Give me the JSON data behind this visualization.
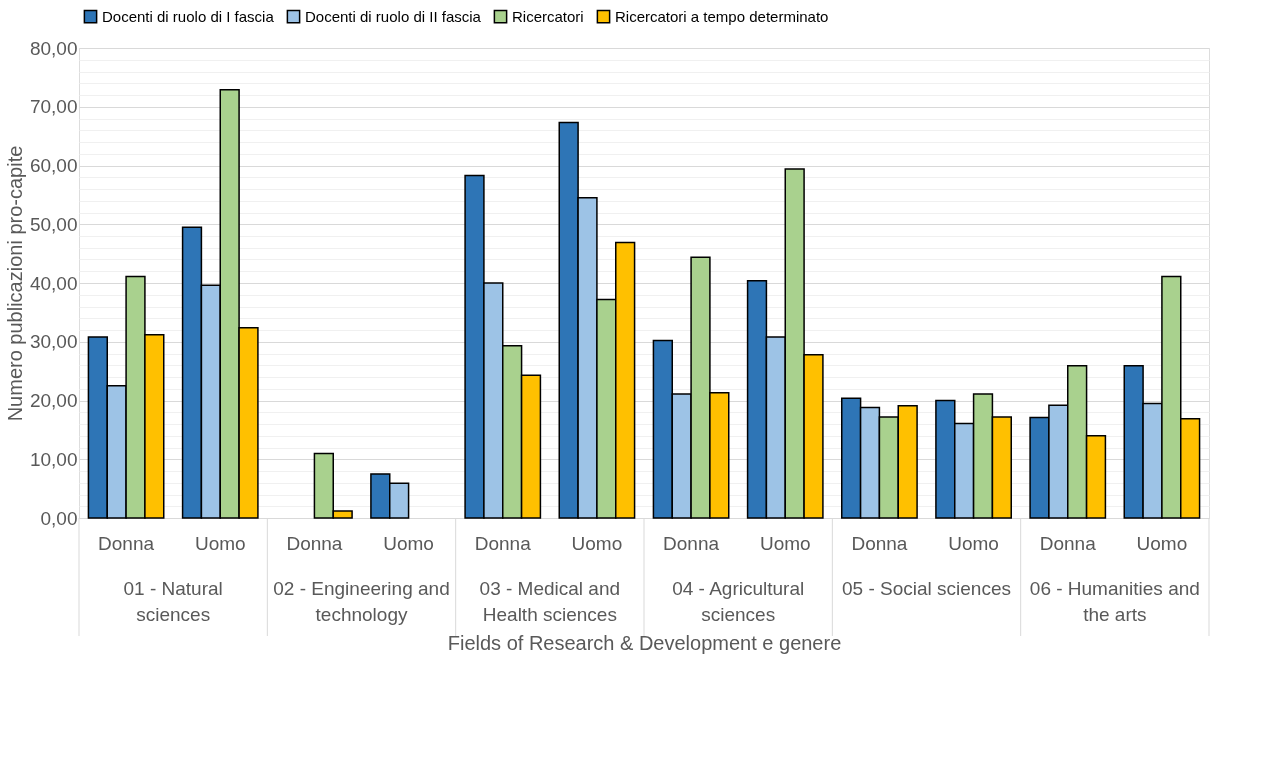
{
  "chart_data": {
    "type": "bar",
    "xlabel": "Fields of Research & Development e genere",
    "ylabel": "Numero publicazioni pro-capite",
    "categories": [
      "Donna",
      "Uomo",
      "Donna",
      "Uomo",
      "Donna",
      "Uomo",
      "Donna",
      "Uomo",
      "Donna",
      "Uomo",
      "Donna",
      "Uomo"
    ],
    "annotations": [
      "01 - Natural sciences",
      "02 - Engineering and technology",
      "03 - Medical and Health sciences",
      "04 - Agricultural sciences",
      "05 - Social sciences",
      "06 - Humanities and the arts"
    ],
    "series": [
      {
        "name": "Docenti di ruolo di I fascia",
        "color": "#2e75b6",
        "values": [
          30.8,
          49.5,
          null,
          7.5,
          58.3,
          67.3,
          30.2,
          40.4,
          20.4,
          20.0,
          17.1,
          25.9
        ]
      },
      {
        "name": "Docenti di ruolo di II fascia",
        "color": "#9dc3e6",
        "values": [
          22.5,
          39.6,
          null,
          5.9,
          40.0,
          54.5,
          21.1,
          30.8,
          18.8,
          16.1,
          19.2,
          19.5
        ]
      },
      {
        "name": "Ricercatori",
        "color": "#a9d18e",
        "values": [
          41.1,
          72.9,
          11.0,
          null,
          29.3,
          37.2,
          44.4,
          59.4,
          17.2,
          21.1,
          25.9,
          41.1
        ]
      },
      {
        "name": "Ricercatori a tempo determinato",
        "color": "#ffc000",
        "values": [
          31.2,
          32.4,
          1.2,
          null,
          24.3,
          46.9,
          21.3,
          27.8,
          19.1,
          17.2,
          14.0,
          16.9
        ]
      }
    ],
    "ylim": [
      0,
      80
    ],
    "yticks": [
      {
        "value": 0,
        "label": "0,00"
      },
      {
        "value": 2,
        "label": null
      },
      {
        "value": 4,
        "label": null
      },
      {
        "value": 6,
        "label": null
      },
      {
        "value": 8,
        "label": null
      },
      {
        "value": 10,
        "label": "10,00"
      },
      {
        "value": 12,
        "label": null
      },
      {
        "value": 14,
        "label": null
      },
      {
        "value": 16,
        "label": null
      },
      {
        "value": 18,
        "label": null
      },
      {
        "value": 20,
        "label": "20,00"
      },
      {
        "value": 22,
        "label": null
      },
      {
        "value": 24,
        "label": null
      },
      {
        "value": 26,
        "label": null
      },
      {
        "value": 28,
        "label": null
      },
      {
        "value": 30,
        "label": "30,00"
      },
      {
        "value": 32,
        "label": null
      },
      {
        "value": 34,
        "label": null
      },
      {
        "value": 36,
        "label": null
      },
      {
        "value": 38,
        "label": null
      },
      {
        "value": 40,
        "label": "40,00"
      },
      {
        "value": 42,
        "label": null
      },
      {
        "value": 44,
        "label": null
      },
      {
        "value": 46,
        "label": null
      },
      {
        "value": 48,
        "label": null
      },
      {
        "value": 50,
        "label": "50,00"
      },
      {
        "value": 52,
        "label": null
      },
      {
        "value": 54,
        "label": null
      },
      {
        "value": 56,
        "label": null
      },
      {
        "value": 58,
        "label": null
      },
      {
        "value": 60,
        "label": "60,00"
      },
      {
        "value": 62,
        "label": null
      },
      {
        "value": 64,
        "label": null
      },
      {
        "value": 66,
        "label": null
      },
      {
        "value": 68,
        "label": null
      },
      {
        "value": 70,
        "label": "70,00"
      },
      {
        "value": 72,
        "label": null
      },
      {
        "value": 74,
        "label": null
      },
      {
        "value": 76,
        "label": null
      },
      {
        "value": 78,
        "label": null
      },
      {
        "value": 80,
        "label": "80,00"
      }
    ],
    "grid": "y",
    "legend": "top"
  }
}
